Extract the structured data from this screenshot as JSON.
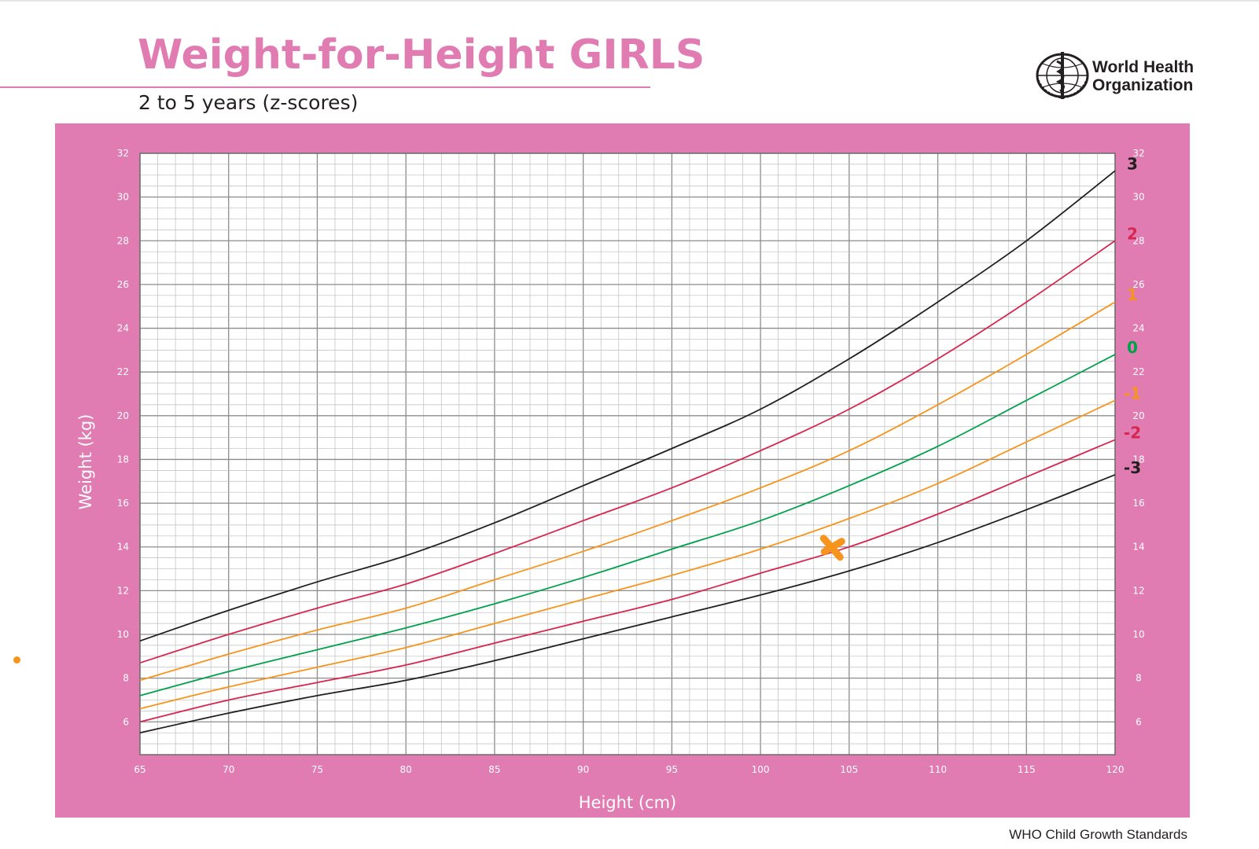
{
  "header": {
    "title": "Weight-for-Height GIRLS",
    "subtitle": "2 to 5 years (z-scores)",
    "org_name_line1": "World Health",
    "org_name_line2": "Organization",
    "logo_icon": "who-emblem-icon"
  },
  "footer": {
    "text": "WHO Child Growth Standards"
  },
  "colors": {
    "brand_pink": "#e07cb2",
    "line_black": "#231f20",
    "line_red": "#d6264f",
    "line_orange": "#f7941d",
    "line_green": "#00a14b",
    "annotation": "#f7941d"
  },
  "chart_data": {
    "type": "line",
    "xlabel": "Height (cm)",
    "ylabel": "Weight (kg)",
    "xlim": [
      65,
      120
    ],
    "ylim": [
      4.5,
      32
    ],
    "x_ticks": [
      65,
      70,
      75,
      80,
      85,
      90,
      95,
      100,
      105,
      110,
      115,
      120
    ],
    "y_ticks": [
      6,
      8,
      10,
      12,
      14,
      16,
      18,
      20,
      22,
      24,
      26,
      28,
      30,
      32
    ],
    "grid": true,
    "y_axis_labels_both_sides": true,
    "x": [
      65,
      70,
      75,
      80,
      85,
      90,
      95,
      100,
      105,
      110,
      115,
      120
    ],
    "series": [
      {
        "name": "3",
        "color": "#231f20",
        "values": [
          9.7,
          11.1,
          12.4,
          13.6,
          15.1,
          16.8,
          18.5,
          20.3,
          22.6,
          25.2,
          28.0,
          31.2
        ]
      },
      {
        "name": "2",
        "color": "#d6264f",
        "values": [
          8.7,
          10.0,
          11.2,
          12.3,
          13.7,
          15.2,
          16.7,
          18.4,
          20.3,
          22.6,
          25.2,
          28.0
        ]
      },
      {
        "name": "1",
        "color": "#f7941d",
        "values": [
          7.9,
          9.1,
          10.2,
          11.2,
          12.5,
          13.8,
          15.2,
          16.7,
          18.4,
          20.5,
          22.8,
          25.2
        ]
      },
      {
        "name": "0",
        "color": "#00a14b",
        "values": [
          7.2,
          8.3,
          9.3,
          10.3,
          11.4,
          12.6,
          13.9,
          15.2,
          16.8,
          18.6,
          20.7,
          22.8
        ]
      },
      {
        "name": "-1",
        "color": "#f7941d",
        "values": [
          6.6,
          7.6,
          8.5,
          9.4,
          10.5,
          11.6,
          12.7,
          13.9,
          15.3,
          16.9,
          18.8,
          20.7
        ]
      },
      {
        "name": "-2",
        "color": "#d6264f",
        "values": [
          6.0,
          7.0,
          7.8,
          8.6,
          9.6,
          10.6,
          11.6,
          12.8,
          14.0,
          15.5,
          17.2,
          18.9
        ]
      },
      {
        "name": "-3",
        "color": "#231f20",
        "values": [
          5.5,
          6.4,
          7.2,
          7.9,
          8.8,
          9.8,
          10.8,
          11.8,
          12.9,
          14.2,
          15.7,
          17.3
        ]
      }
    ],
    "annotations": [
      {
        "type": "cross-marker",
        "x": 104,
        "y": 14.0,
        "color": "#f7941d"
      }
    ]
  }
}
